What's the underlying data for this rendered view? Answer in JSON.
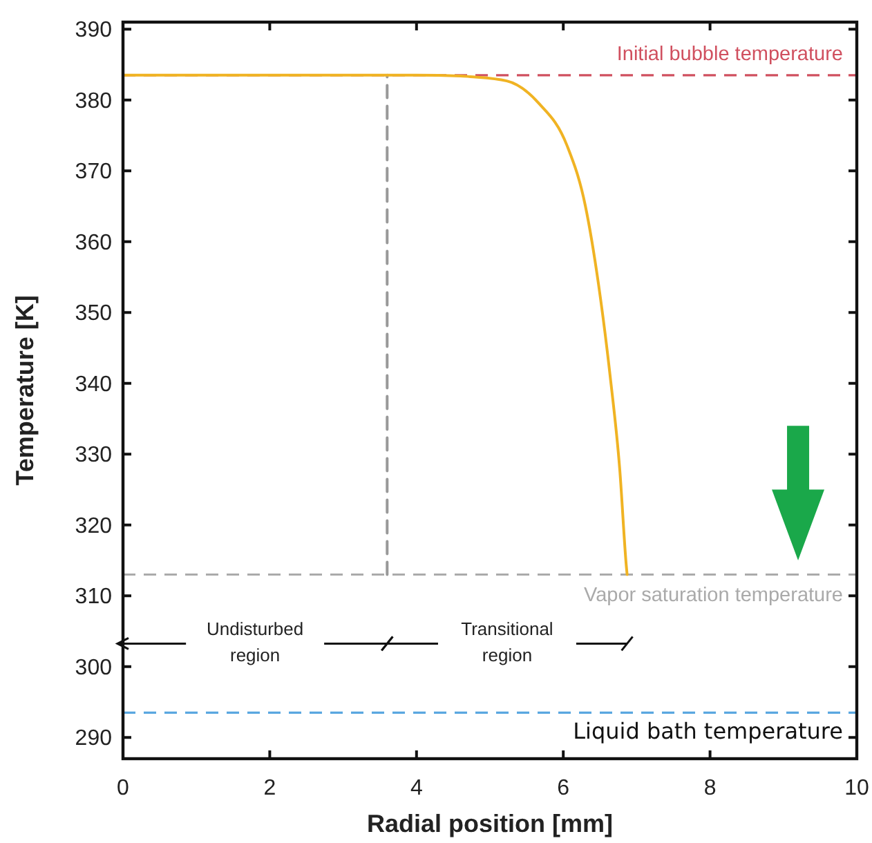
{
  "chart_data": {
    "type": "line",
    "xlabel": "Radial position [mm]",
    "ylabel": "Temperature [K]",
    "xlim": [
      0,
      10
    ],
    "xticks": [
      0,
      2,
      4,
      6,
      8,
      10
    ],
    "ylim": [
      287,
      391
    ],
    "yticks": [
      290,
      300,
      310,
      320,
      330,
      340,
      350,
      360,
      370,
      380,
      390
    ],
    "series": [
      {
        "color": "#f0b323",
        "line_style": "solid",
        "x": [
          0,
          1,
          2,
          3,
          4,
          4.6,
          4.73,
          5.23,
          5.67,
          6.05,
          6.3,
          6.48,
          6.64,
          6.77,
          6.86,
          6.87
        ],
        "values": [
          383.5,
          383.5,
          383.5,
          383.5,
          383.5,
          383.4,
          383.3,
          382.7,
          379.5,
          373.6,
          365.1,
          354,
          340.9,
          327.8,
          314.1,
          313
        ]
      },
      {
        "color": "#999999",
        "line_style": "dashed",
        "x": [
          3.6,
          3.6
        ],
        "values": [
          313,
          383.5
        ]
      }
    ],
    "ref_lines": [
      {
        "axis": "y",
        "value": 383.5,
        "label": "Initial bubble temperature",
        "color": "#d0505f",
        "line_style": "dashed"
      },
      {
        "axis": "y",
        "value": 313,
        "label": "Vapor saturation temperature",
        "color": "#aaaaaa",
        "line_style": "dashed"
      },
      {
        "axis": "y",
        "value": 293.5,
        "label": "Liquid bath temperature",
        "color": "#5aa7e0",
        "line_style": "dashed"
      }
    ],
    "annotations": [
      "Undisturbed region",
      "Transitional region"
    ],
    "marker": "none"
  }
}
